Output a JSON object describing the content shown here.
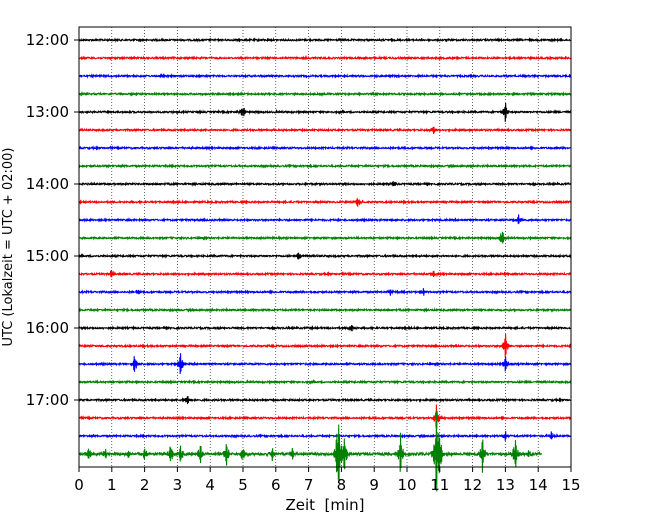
{
  "chart_data": {
    "type": "line",
    "title": "",
    "xlabel": "Zeit  [min]",
    "ylabel": "UTC (Lokalzeit = UTC + 02:00)",
    "xlim": [
      0,
      15
    ],
    "x_ticks": [
      0,
      1,
      2,
      3,
      4,
      5,
      6,
      7,
      8,
      9,
      10,
      11,
      12,
      13,
      14,
      15
    ],
    "y_tick_labels": [
      "12:00",
      "13:00",
      "14:00",
      "15:00",
      "16:00",
      "17:00"
    ],
    "trace_interval_min": 15,
    "grid": "vertical dotted at each minute",
    "trace_colors": [
      "#000000",
      "#ff0000",
      "#0000ff",
      "#008000"
    ],
    "traces": [
      {
        "start": "12:00",
        "events": []
      },
      {
        "start": "12:15",
        "events": []
      },
      {
        "start": "12:30",
        "events": []
      },
      {
        "start": "12:45",
        "events": []
      },
      {
        "start": "13:00",
        "events": [
          {
            "t": 5.0,
            "amp": 0.4
          },
          {
            "t": 13.0,
            "amp": 0.6
          }
        ]
      },
      {
        "start": "13:15",
        "events": [
          {
            "t": 10.8,
            "amp": 0.25
          }
        ]
      },
      {
        "start": "13:30",
        "events": []
      },
      {
        "start": "13:45",
        "events": []
      },
      {
        "start": "14:00",
        "events": [
          {
            "t": 9.6,
            "amp": 0.2
          }
        ]
      },
      {
        "start": "14:15",
        "events": [
          {
            "t": 8.5,
            "amp": 0.35
          }
        ]
      },
      {
        "start": "14:30",
        "events": [
          {
            "t": 13.4,
            "amp": 0.3
          }
        ]
      },
      {
        "start": "14:45",
        "events": [
          {
            "t": 12.9,
            "amp": 0.55
          }
        ]
      },
      {
        "start": "15:00",
        "events": [
          {
            "t": 6.7,
            "amp": 0.3
          }
        ]
      },
      {
        "start": "15:15",
        "events": [
          {
            "t": 1.0,
            "amp": 0.35
          },
          {
            "t": 10.8,
            "amp": 0.2
          }
        ]
      },
      {
        "start": "15:30",
        "events": [
          {
            "t": 1.8,
            "amp": 0.2
          },
          {
            "t": 9.5,
            "amp": 0.2
          },
          {
            "t": 10.5,
            "amp": 0.2
          }
        ]
      },
      {
        "start": "15:45",
        "events": []
      },
      {
        "start": "16:00",
        "events": [
          {
            "t": 8.3,
            "amp": 0.25
          }
        ]
      },
      {
        "start": "16:15",
        "events": [
          {
            "t": 13.0,
            "amp": 0.8
          }
        ]
      },
      {
        "start": "16:30",
        "events": [
          {
            "t": 1.7,
            "amp": 0.6
          },
          {
            "t": 3.1,
            "amp": 0.7
          },
          {
            "t": 13.0,
            "amp": 0.5
          }
        ]
      },
      {
        "start": "16:45",
        "events": []
      },
      {
        "start": "17:00",
        "events": [
          {
            "t": 3.3,
            "amp": 0.3
          }
        ]
      },
      {
        "start": "17:15",
        "events": [
          {
            "t": 10.9,
            "amp": 0.8
          }
        ]
      },
      {
        "start": "17:30",
        "events": [
          {
            "t": 13.0,
            "amp": 0.3
          },
          {
            "t": 14.4,
            "amp": 0.25
          }
        ]
      },
      {
        "start": "17:45",
        "end_min": 14.1,
        "events": [
          {
            "t": 0.3,
            "amp": 0.4
          },
          {
            "t": 0.8,
            "amp": 0.3
          },
          {
            "t": 1.5,
            "amp": 0.3
          },
          {
            "t": 2.0,
            "amp": 0.4
          },
          {
            "t": 2.8,
            "amp": 0.6
          },
          {
            "t": 3.1,
            "amp": 0.5
          },
          {
            "t": 3.7,
            "amp": 0.6
          },
          {
            "t": 4.5,
            "amp": 0.7
          },
          {
            "t": 5.0,
            "amp": 0.5
          },
          {
            "t": 5.9,
            "amp": 0.4
          },
          {
            "t": 6.5,
            "amp": 0.4
          },
          {
            "t": 7.9,
            "amp": 2.6
          },
          {
            "t": 8.1,
            "amp": 1.0
          },
          {
            "t": 9.8,
            "amp": 1.2
          },
          {
            "t": 10.9,
            "amp": 2.4
          },
          {
            "t": 11.0,
            "amp": 1.0
          },
          {
            "t": 12.3,
            "amp": 1.0
          },
          {
            "t": 13.3,
            "amp": 1.0
          },
          {
            "t": 13.7,
            "amp": 0.3
          }
        ]
      }
    ]
  }
}
